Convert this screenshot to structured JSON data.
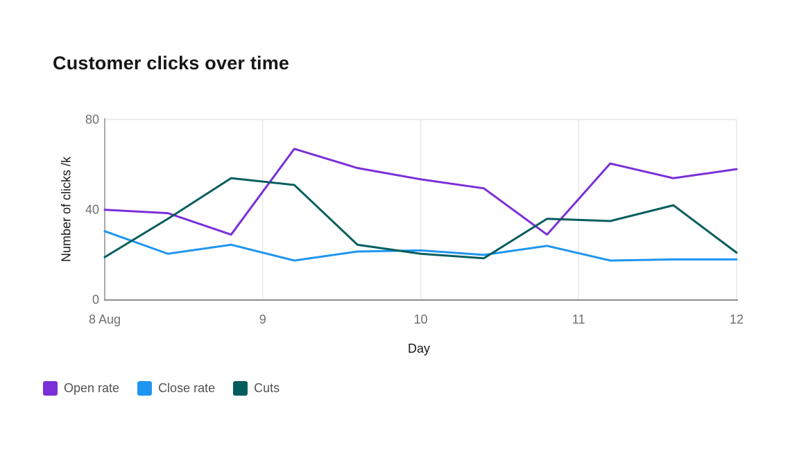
{
  "title": "Customer clicks over time",
  "chart_data": {
    "type": "line",
    "title": "Customer clicks over time",
    "xlabel": "Day",
    "ylabel": "Number of clicks /k",
    "xlim": [
      8,
      12
    ],
    "ylim": [
      0,
      80
    ],
    "grid": {
      "horizontal_at": [
        80
      ],
      "vertical_at": [
        9,
        10,
        11,
        12
      ]
    },
    "legend_position": "bottom-left",
    "x_ticks": [
      {
        "value": 8,
        "label": "8 Aug"
      },
      {
        "value": 9,
        "label": "9"
      },
      {
        "value": 10,
        "label": "10"
      },
      {
        "value": 11,
        "label": "11"
      },
      {
        "value": 12,
        "label": "12"
      }
    ],
    "y_ticks": [
      {
        "value": 0,
        "label": "0"
      },
      {
        "value": 40,
        "label": "40"
      },
      {
        "value": 80,
        "label": "80"
      }
    ],
    "x": [
      8,
      8.4,
      8.8,
      9.2,
      9.6,
      10,
      10.4,
      10.8,
      11.2,
      11.6,
      12
    ],
    "series": [
      {
        "name": "Open rate",
        "color": "#7a2fd9",
        "values": [
          40,
          38.5,
          29,
          67,
          58.5,
          53.5,
          49.5,
          29,
          60.5,
          54,
          58
        ]
      },
      {
        "name": "Close rate",
        "color": "#1e96f0",
        "values": [
          30.5,
          20.5,
          24.5,
          17.5,
          21.5,
          22,
          20,
          24,
          17.5,
          18,
          18
        ]
      },
      {
        "name": "Cuts",
        "color": "#045d5d",
        "values": [
          19,
          36,
          54,
          51,
          24.5,
          20.5,
          18.5,
          36,
          35,
          42,
          21
        ]
      }
    ]
  },
  "legend": {
    "items": [
      {
        "label": "Open rate",
        "color": "#7a2fd9"
      },
      {
        "label": "Close rate",
        "color": "#1e96f0"
      },
      {
        "label": "Cuts",
        "color": "#045d5d"
      }
    ]
  },
  "colors": {
    "background": "#ffffff",
    "axis": "#8d8d8d",
    "grid": "#e8e8e8",
    "tick_text": "#6f6f6f",
    "label_text": "#161616",
    "title_text": "#161616",
    "legend_text": "#525252"
  }
}
